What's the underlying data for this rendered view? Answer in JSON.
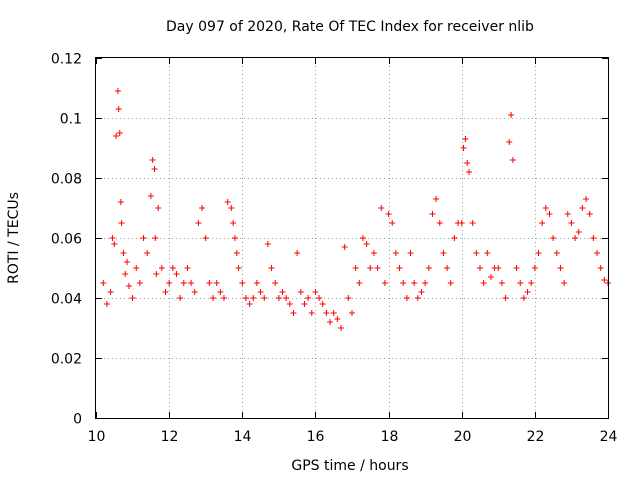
{
  "chart_data": {
    "type": "scatter",
    "title": "Day 097 of 2020, Rate Of TEC Index for receiver nlib",
    "xlabel": "GPS time / hours",
    "ylabel": "ROTI / TECUs",
    "xlim": [
      10,
      24
    ],
    "ylim": [
      0,
      0.12
    ],
    "xticks": [
      10,
      12,
      14,
      16,
      18,
      20,
      22,
      24
    ],
    "xtick_labels": [
      "10",
      "12",
      "14",
      "16",
      "18",
      "20",
      "22",
      "24"
    ],
    "yticks": [
      0,
      0.02,
      0.04,
      0.06,
      0.08,
      0.1,
      0.12
    ],
    "ytick_labels": [
      "0",
      "0.02",
      "0.04",
      "0.06",
      "0.08",
      "0.1",
      "0.12"
    ],
    "grid": true,
    "marker": "plus",
    "color": "#ff0000",
    "series": [
      {
        "name": "ROTI",
        "x": [
          10.2,
          10.3,
          10.4,
          10.45,
          10.5,
          10.55,
          10.6,
          10.62,
          10.65,
          10.68,
          10.7,
          10.75,
          10.8,
          10.85,
          10.9,
          11.0,
          11.1,
          11.2,
          11.3,
          11.4,
          11.5,
          11.55,
          11.6,
          11.62,
          11.65,
          11.7,
          11.8,
          11.9,
          12.0,
          12.1,
          12.2,
          12.3,
          12.4,
          12.5,
          12.6,
          12.7,
          12.8,
          12.9,
          13.0,
          13.1,
          13.2,
          13.3,
          13.4,
          13.5,
          13.6,
          13.7,
          13.75,
          13.8,
          13.85,
          13.9,
          14.0,
          14.1,
          14.2,
          14.3,
          14.4,
          14.5,
          14.6,
          14.7,
          14.8,
          14.9,
          15.0,
          15.1,
          15.2,
          15.3,
          15.4,
          15.5,
          15.6,
          15.7,
          15.8,
          15.9,
          16.0,
          16.1,
          16.2,
          16.3,
          16.4,
          16.5,
          16.6,
          16.7,
          16.8,
          16.9,
          17.0,
          17.1,
          17.2,
          17.3,
          17.4,
          17.5,
          17.6,
          17.7,
          17.8,
          17.9,
          18.0,
          18.1,
          18.2,
          18.3,
          18.4,
          18.5,
          18.6,
          18.7,
          18.8,
          18.9,
          19.0,
          19.1,
          19.2,
          19.3,
          19.4,
          19.5,
          19.6,
          19.7,
          19.8,
          19.9,
          20.0,
          20.05,
          20.1,
          20.15,
          20.2,
          20.3,
          20.4,
          20.5,
          20.6,
          20.7,
          20.8,
          20.9,
          21.0,
          21.1,
          21.2,
          21.3,
          21.35,
          21.4,
          21.5,
          21.6,
          21.7,
          21.8,
          21.9,
          22.0,
          22.1,
          22.2,
          22.3,
          22.4,
          22.5,
          22.6,
          22.7,
          22.8,
          22.9,
          23.0,
          23.1,
          23.2,
          23.3,
          23.4,
          23.5,
          23.6,
          23.7,
          23.8,
          23.9,
          24.0
        ],
        "y": [
          0.045,
          0.038,
          0.042,
          0.06,
          0.058,
          0.094,
          0.109,
          0.103,
          0.095,
          0.072,
          0.065,
          0.055,
          0.048,
          0.052,
          0.044,
          0.04,
          0.05,
          0.045,
          0.06,
          0.055,
          0.074,
          0.086,
          0.083,
          0.06,
          0.048,
          0.07,
          0.05,
          0.042,
          0.045,
          0.05,
          0.048,
          0.04,
          0.045,
          0.05,
          0.045,
          0.042,
          0.065,
          0.07,
          0.06,
          0.045,
          0.04,
          0.045,
          0.042,
          0.04,
          0.072,
          0.07,
          0.065,
          0.06,
          0.055,
          0.05,
          0.045,
          0.04,
          0.038,
          0.04,
          0.045,
          0.042,
          0.04,
          0.058,
          0.05,
          0.045,
          0.04,
          0.042,
          0.04,
          0.038,
          0.035,
          0.055,
          0.042,
          0.038,
          0.04,
          0.035,
          0.042,
          0.04,
          0.038,
          0.035,
          0.032,
          0.035,
          0.033,
          0.03,
          0.057,
          0.04,
          0.035,
          0.05,
          0.045,
          0.06,
          0.058,
          0.05,
          0.055,
          0.05,
          0.07,
          0.045,
          0.068,
          0.065,
          0.055,
          0.05,
          0.045,
          0.04,
          0.055,
          0.045,
          0.04,
          0.042,
          0.045,
          0.05,
          0.068,
          0.073,
          0.065,
          0.055,
          0.05,
          0.045,
          0.06,
          0.065,
          0.065,
          0.09,
          0.093,
          0.085,
          0.082,
          0.065,
          0.055,
          0.05,
          0.045,
          0.055,
          0.047,
          0.05,
          0.05,
          0.045,
          0.04,
          0.092,
          0.101,
          0.086,
          0.05,
          0.045,
          0.04,
          0.042,
          0.045,
          0.05,
          0.055,
          0.065,
          0.07,
          0.068,
          0.06,
          0.055,
          0.05,
          0.045,
          0.068,
          0.065,
          0.06,
          0.062,
          0.07,
          0.073,
          0.068,
          0.06,
          0.055,
          0.05,
          0.046,
          0.045
        ]
      }
    ]
  }
}
